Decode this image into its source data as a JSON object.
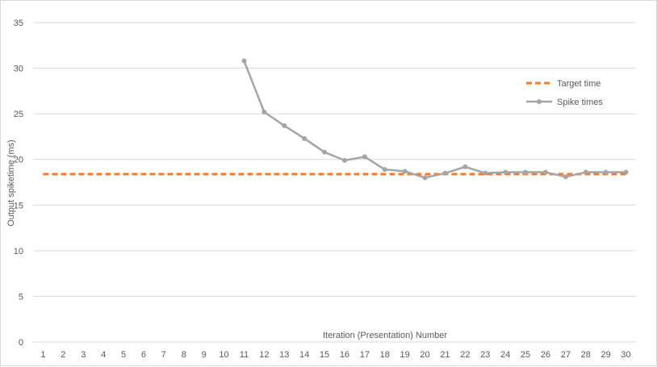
{
  "chart_data": {
    "type": "line",
    "title": "",
    "xlabel": "Iteration (Presentation)  Number",
    "ylabel": "Output spiketime (ms)",
    "ylim": [
      0,
      35
    ],
    "yticks": [
      0,
      5,
      10,
      15,
      20,
      25,
      30,
      35
    ],
    "categories": [
      "1",
      "2",
      "3",
      "4",
      "5",
      "6",
      "7",
      "8",
      "9",
      "10",
      "11",
      "12",
      "13",
      "14",
      "15",
      "16",
      "17",
      "18",
      "19",
      "20",
      "21",
      "22",
      "23",
      "24",
      "25",
      "26",
      "27",
      "28",
      "29",
      "30"
    ],
    "grid": "horizontal",
    "legend_position": "top-right",
    "series": [
      {
        "name": "Target time",
        "style": "dashed",
        "color": "#ED7D31",
        "values": [
          18.4,
          18.4,
          18.4,
          18.4,
          18.4,
          18.4,
          18.4,
          18.4,
          18.4,
          18.4,
          18.4,
          18.4,
          18.4,
          18.4,
          18.4,
          18.4,
          18.4,
          18.4,
          18.4,
          18.4,
          18.4,
          18.4,
          18.4,
          18.4,
          18.4,
          18.4,
          18.4,
          18.4,
          18.4,
          18.4
        ]
      },
      {
        "name": "Spike times",
        "style": "solid-markers",
        "color": "#A5A5A5",
        "values": [
          null,
          null,
          null,
          null,
          null,
          null,
          null,
          null,
          null,
          null,
          30.8,
          25.2,
          23.7,
          22.3,
          20.8,
          19.9,
          20.3,
          18.9,
          18.7,
          18.0,
          18.5,
          19.2,
          18.5,
          18.6,
          18.6,
          18.6,
          18.1,
          18.6,
          18.6,
          18.6
        ]
      }
    ]
  }
}
